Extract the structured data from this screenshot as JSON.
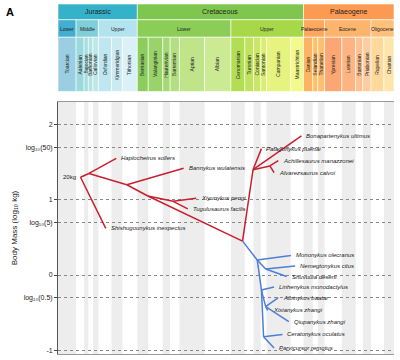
{
  "chart_data": {
    "type": "line",
    "panel_label": "A",
    "ylabel": "Body Mass (log₁₀ kg)",
    "xlim": [
      182.7,
      23
    ],
    "ylim": [
      -1.05,
      2.3
    ],
    "yticks": [
      -1,
      {
        "value": -0.301,
        "label": "log₁₀(0.5)"
      },
      0,
      {
        "value": 0.699,
        "label": "log₁₀(5)"
      },
      1,
      {
        "value": 1.699,
        "label": "log₁₀(50)"
      },
      2
    ],
    "grid": true,
    "tick_labels": "y",
    "timescale": {
      "periods": [
        {
          "name": "Jurassic",
          "start": 182.7,
          "end": 145,
          "color": "#34b2c9"
        },
        {
          "name": "Cretaceous",
          "start": 145,
          "end": 66,
          "color": "#7fc64e"
        },
        {
          "name": "Palaeogene",
          "start": 66,
          "end": 23,
          "color": "#fd9a52"
        }
      ],
      "epochs": [
        {
          "name": "Lower",
          "start": 182.7,
          "end": 174.1,
          "color": "#42aed0"
        },
        {
          "name": "Middle",
          "start": 174.1,
          "end": 163.5,
          "color": "#80cfd8"
        },
        {
          "name": "Upper",
          "start": 163.5,
          "end": 145,
          "color": "#b3e3ee"
        },
        {
          "name": "Lower",
          "start": 145,
          "end": 100.5,
          "color": "#8ccd57"
        },
        {
          "name": "Upper",
          "start": 100.5,
          "end": 66,
          "color": "#a6d84a"
        },
        {
          "name": "Palaeocene",
          "start": 66,
          "end": 56,
          "color": "#fda75f"
        },
        {
          "name": "Eocene",
          "start": 56,
          "end": 33.9,
          "color": "#fdb46c"
        },
        {
          "name": "Oligocene",
          "start": 33.9,
          "end": 23,
          "color": "#fec07a"
        }
      ],
      "stages": [
        {
          "name": "Toarcian",
          "start": 182.7,
          "end": 174.1,
          "color": "#99cee3"
        },
        {
          "name": "Aalenian",
          "start": 174.1,
          "end": 170.3,
          "color": "#9ad9dd"
        },
        {
          "name": "Bajocian",
          "start": 170.3,
          "end": 168.3,
          "color": "#a6dde0"
        },
        {
          "name": "Bathonian",
          "start": 168.3,
          "end": 166.1,
          "color": "#b3e2e3"
        },
        {
          "name": "Callovian",
          "start": 166.1,
          "end": 163.5,
          "color": "#bfe7e5"
        },
        {
          "name": "Oxfordian",
          "start": 163.5,
          "end": 157.3,
          "color": "#bfe7f1"
        },
        {
          "name": "Kimmeridgian",
          "start": 157.3,
          "end": 152.1,
          "color": "#cceaf2"
        },
        {
          "name": "Tithonian",
          "start": 152.1,
          "end": 145,
          "color": "#d9f1f7"
        },
        {
          "name": "Berriasian",
          "start": 145,
          "end": 139.8,
          "color": "#8ccd60"
        },
        {
          "name": "Valanginian",
          "start": 139.8,
          "end": 132.9,
          "color": "#99d36a"
        },
        {
          "name": "Hauterivian",
          "start": 132.9,
          "end": 129.4,
          "color": "#a6d975"
        },
        {
          "name": "Barremian",
          "start": 129.4,
          "end": 125,
          "color": "#b3df7f"
        },
        {
          "name": "Aptian",
          "start": 125,
          "end": 113,
          "color": "#bfe48a"
        },
        {
          "name": "Albian",
          "start": 113,
          "end": 100.5,
          "color": "#cce994"
        },
        {
          "name": "Cenomanian",
          "start": 100.5,
          "end": 93.9,
          "color": "#b3de53"
        },
        {
          "name": "Turonian",
          "start": 93.9,
          "end": 89.8,
          "color": "#bfe35d"
        },
        {
          "name": "Coniacian",
          "start": 89.8,
          "end": 86.3,
          "color": "#cce768"
        },
        {
          "name": "Santonian",
          "start": 86.3,
          "end": 83.6,
          "color": "#d9ef74"
        },
        {
          "name": "Campanian",
          "start": 83.6,
          "end": 72.1,
          "color": "#e6f47f"
        },
        {
          "name": "Maastrichtian",
          "start": 72.1,
          "end": 66,
          "color": "#f2fa8c"
        },
        {
          "name": "Danian",
          "start": 66,
          "end": 61.6,
          "color": "#fdb462"
        },
        {
          "name": "Selandian",
          "start": 61.6,
          "end": 59.2,
          "color": "#febf65"
        },
        {
          "name": "Thanetian",
          "start": 59.2,
          "end": 56,
          "color": "#fdbf6f"
        },
        {
          "name": "Ypresian",
          "start": 56,
          "end": 47.8,
          "color": "#fca773"
        },
        {
          "name": "Lutetian",
          "start": 47.8,
          "end": 41.2,
          "color": "#fcb482"
        },
        {
          "name": "Bartonian",
          "start": 41.2,
          "end": 37.8,
          "color": "#fdc091"
        },
        {
          "name": "Priabonian",
          "start": 37.8,
          "end": 33.9,
          "color": "#fdcda1"
        },
        {
          "name": "Rupelian",
          "start": 33.9,
          "end": 27.8,
          "color": "#fed99a"
        },
        {
          "name": "Chattian",
          "start": 27.8,
          "end": 23,
          "color": "#fee6aa"
        }
      ]
    },
    "series": [
      {
        "color": "#c8202e",
        "x": [
          172,
          160,
          null,
          172,
          168,
          null,
          168,
          155,
          null,
          168,
          150,
          null,
          150,
          123,
          null,
          150,
          140,
          null,
          140,
          128,
          null,
          128,
          117,
          null,
          128,
          121,
          null,
          140,
          95,
          null,
          95,
          90,
          null,
          90,
          67,
          null,
          90,
          86,
          null,
          90,
          82,
          null,
          82,
          78,
          null,
          82,
          80
        ],
        "y": [
          1.3,
          0.62,
          null,
          1.3,
          1.35,
          null,
          1.35,
          1.55,
          null,
          1.35,
          1.2,
          null,
          1.2,
          1.42,
          null,
          1.2,
          1.05,
          null,
          1.05,
          0.98,
          null,
          0.98,
          1.02,
          null,
          0.98,
          0.88,
          null,
          1.05,
          0.45,
          null,
          0.45,
          1.4,
          null,
          1.4,
          1.85,
          null,
          1.4,
          1.68,
          null,
          1.4,
          1.45,
          null,
          1.45,
          1.52,
          null,
          1.45,
          1.36
        ]
      },
      {
        "color": "#4d7fd6",
        "x": [
          95,
          88,
          null,
          88,
          72,
          null,
          88,
          84,
          null,
          84,
          70,
          null,
          84,
          74,
          null,
          88,
          86,
          null,
          86,
          80,
          null,
          86,
          84,
          null,
          84,
          78,
          null,
          84,
          83,
          null,
          84,
          73,
          null,
          86,
          85,
          null,
          85,
          76,
          null,
          85,
          80
        ],
        "y": [
          0.45,
          0.2,
          null,
          0.2,
          0.26,
          null,
          0.2,
          0.08,
          null,
          0.08,
          0.12,
          null,
          0.08,
          -0.02,
          null,
          0.2,
          -0.2,
          null,
          -0.2,
          -0.16,
          null,
          -0.2,
          -0.42,
          null,
          -0.42,
          -0.3,
          null,
          -0.42,
          -0.47,
          null,
          -0.42,
          -0.62,
          null,
          -0.2,
          -0.82,
          null,
          -0.82,
          -0.79,
          null,
          -0.82,
          -0.97
        ]
      }
    ],
    "annotations": [
      {
        "text": "20kg",
        "x": 172,
        "y": 1.3
      },
      {
        "text": "Haplocheirus sollers",
        "x": 155,
        "y": 1.55
      },
      {
        "text": "Shishugounykus inexpectus",
        "x": 160,
        "y": 0.62
      },
      {
        "text": "Bannykus wulatensis",
        "x": 123,
        "y": 1.42
      },
      {
        "text": "Xiyunykus pengi",
        "x": 117,
        "y": 1.02
      },
      {
        "text": "Tugulusaurus facilis",
        "x": 121,
        "y": 0.88
      },
      {
        "text": "Bonapartenykus ultimus",
        "x": 67,
        "y": 1.85
      },
      {
        "text": "Patagonykus puertai",
        "x": 86,
        "y": 1.68
      },
      {
        "text": "Achillesaurus manazzonei",
        "x": 78,
        "y": 1.52
      },
      {
        "text": "Alvarezsaurus calvoi",
        "x": 80,
        "y": 1.36
      },
      {
        "text": "Mononykus olecranus",
        "x": 72,
        "y": 0.26
      },
      {
        "text": "Nemegtonykus citus",
        "x": 70,
        "y": 0.12
      },
      {
        "text": "Shuvuuia deserti",
        "x": 74,
        "y": -0.02
      },
      {
        "text": "Linhenykus monodactylus",
        "x": 80,
        "y": -0.16
      },
      {
        "text": "Albinykus baatar",
        "x": 78,
        "y": -0.3
      },
      {
        "text": "Xixianykus zhangi",
        "x": 83,
        "y": -0.47
      },
      {
        "text": "Qiupanykus zhangi",
        "x": 73,
        "y": -0.62
      },
      {
        "text": "Ceratonykus oculatus",
        "x": 76,
        "y": -0.79
      },
      {
        "text": "Parvicursor remotus",
        "x": 80,
        "y": -0.97
      }
    ]
  }
}
